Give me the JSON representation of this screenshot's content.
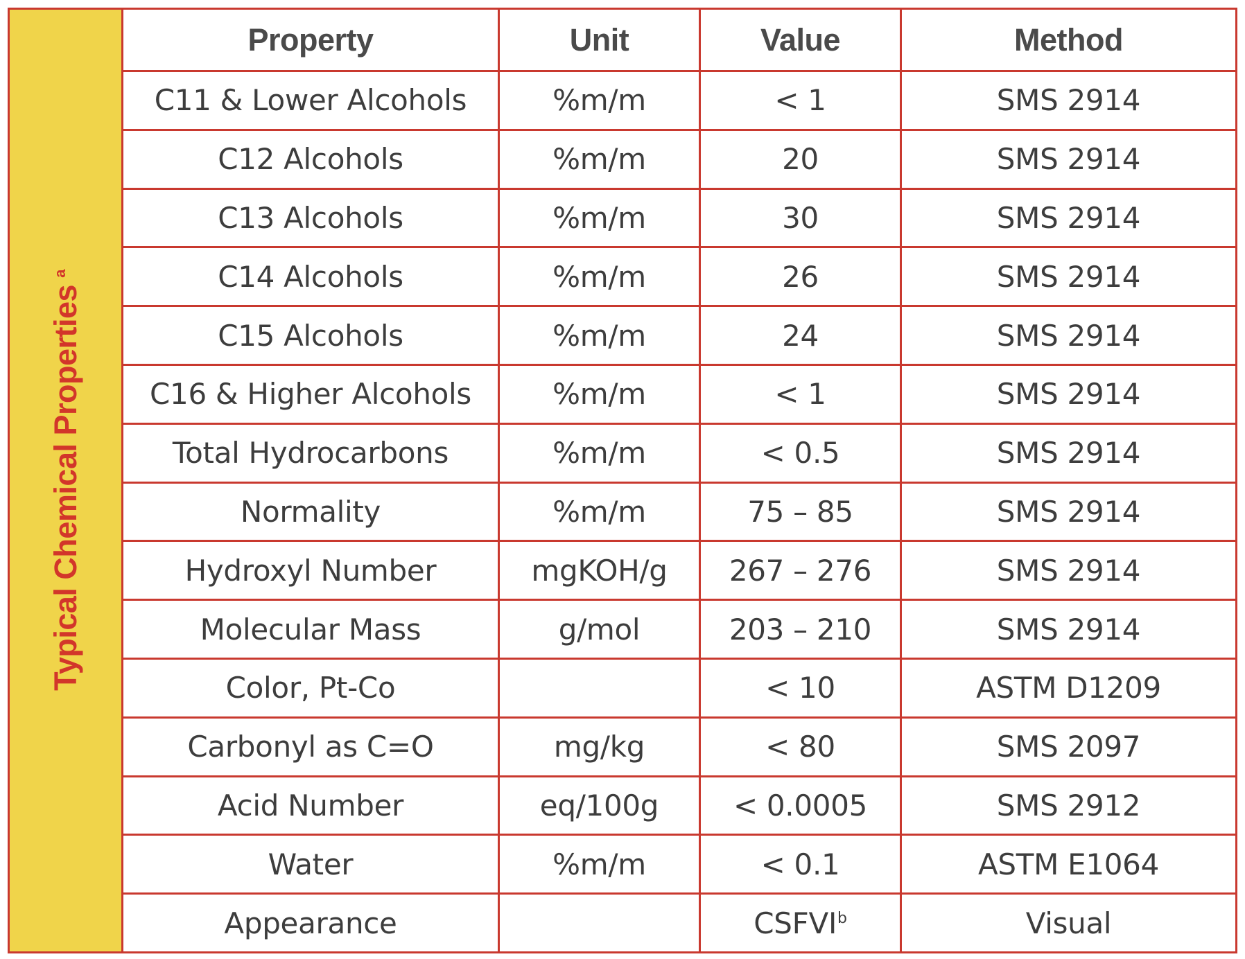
{
  "side_title": {
    "text": "Typical Chemical Properties",
    "footnote": "a"
  },
  "headers": {
    "property": "Property",
    "unit": "Unit",
    "value": "Value",
    "method": "Method"
  },
  "rows": [
    {
      "property": "C11 & Lower Alcohols",
      "unit": "%m/m",
      "value": "< 1",
      "method": "SMS 2914"
    },
    {
      "property": "C12 Alcohols",
      "unit": "%m/m",
      "value": "20",
      "method": "SMS 2914"
    },
    {
      "property": "C13 Alcohols",
      "unit": "%m/m",
      "value": "30",
      "method": "SMS 2914"
    },
    {
      "property": "C14 Alcohols",
      "unit": "%m/m",
      "value": "26",
      "method": "SMS 2914"
    },
    {
      "property": "C15 Alcohols",
      "unit": "%m/m",
      "value": "24",
      "method": "SMS 2914"
    },
    {
      "property": "C16 & Higher Alcohols",
      "unit": "%m/m",
      "value": "< 1",
      "method": "SMS 2914"
    },
    {
      "property": "Total Hydrocarbons",
      "unit": "%m/m",
      "value": "< 0.5",
      "method": "SMS 2914"
    },
    {
      "property": "Normality",
      "unit": "%m/m",
      "value": "75 – 85",
      "method": "SMS 2914"
    },
    {
      "property": "Hydroxyl Number",
      "unit": "mgKOH/g",
      "value": "267 – 276",
      "method": "SMS 2914"
    },
    {
      "property": "Molecular Mass",
      "unit": "g/mol",
      "value": "203 – 210",
      "method": "SMS 2914"
    },
    {
      "property": "Color, Pt-Co",
      "unit": "",
      "value": "< 10",
      "method": "ASTM D1209"
    },
    {
      "property": "Carbonyl as C=O",
      "unit": "mg/kg",
      "value": "< 80",
      "method": "SMS 2097"
    },
    {
      "property": "Acid Number",
      "unit": "eq/100g",
      "value": "< 0.0005",
      "method": "SMS 2912"
    },
    {
      "property": "Water",
      "unit": "%m/m",
      "value": "< 0.1",
      "method": "ASTM E1064"
    },
    {
      "property": "Appearance",
      "unit": "",
      "value": "CSFVI",
      "value_footnote": "b",
      "method": "Visual"
    }
  ],
  "colors": {
    "border": "#c9392f",
    "side_background": "#f0d44a",
    "side_text": "#d2362a",
    "text": "#3d3d3d"
  }
}
